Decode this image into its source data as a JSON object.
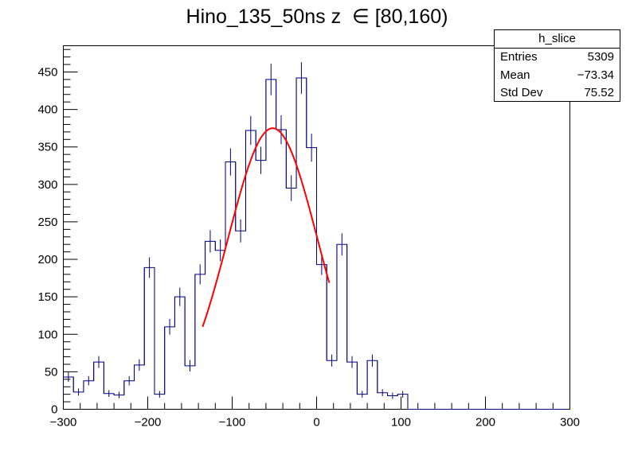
{
  "title": "Hino_135_50ns z  ∈ [80,160)",
  "stats": {
    "name": "h_slice",
    "rows": [
      {
        "label": "Entries",
        "value": "5309"
      },
      {
        "label": "Mean",
        "value": "−73.34"
      },
      {
        "label": "Std Dev",
        "value": "75.52"
      }
    ]
  },
  "colors": {
    "histogram": "#000080",
    "fit": "#ff0000"
  },
  "chart_data": {
    "type": "histogram",
    "title": "Hino_135_50ns z  ∈ [80,160)",
    "xlim": [
      -300,
      300
    ],
    "ylim": [
      0,
      485
    ],
    "xticks": [
      -300,
      -200,
      -100,
      0,
      100,
      200,
      300
    ],
    "yticks": [
      0,
      50,
      100,
      150,
      200,
      250,
      300,
      350,
      400,
      450
    ],
    "xtick_labels": [
      "−300",
      "−200",
      "−100",
      "0",
      "100",
      "200",
      "300"
    ],
    "ytick_labels": [
      "0",
      "50",
      "100",
      "150",
      "200",
      "250",
      "300",
      "350",
      "400",
      "450"
    ],
    "bin_width": 12,
    "bin_edges_start": -300,
    "values": [
      43,
      23,
      38,
      63,
      21,
      19,
      38,
      59,
      189,
      20,
      110,
      150,
      58,
      180,
      224,
      212,
      330,
      238,
      372,
      332,
      440,
      373,
      295,
      442,
      349,
      193,
      65,
      220,
      63,
      20,
      65,
      22,
      18,
      20,
      0,
      0,
      0,
      0,
      0,
      0,
      0,
      0,
      0,
      0,
      0,
      0,
      0,
      0,
      0,
      0
    ],
    "fit": {
      "type": "gaussian",
      "amplitude": 375,
      "mean": -52,
      "sigma": 53,
      "x_range": [
        -135,
        15
      ]
    }
  }
}
